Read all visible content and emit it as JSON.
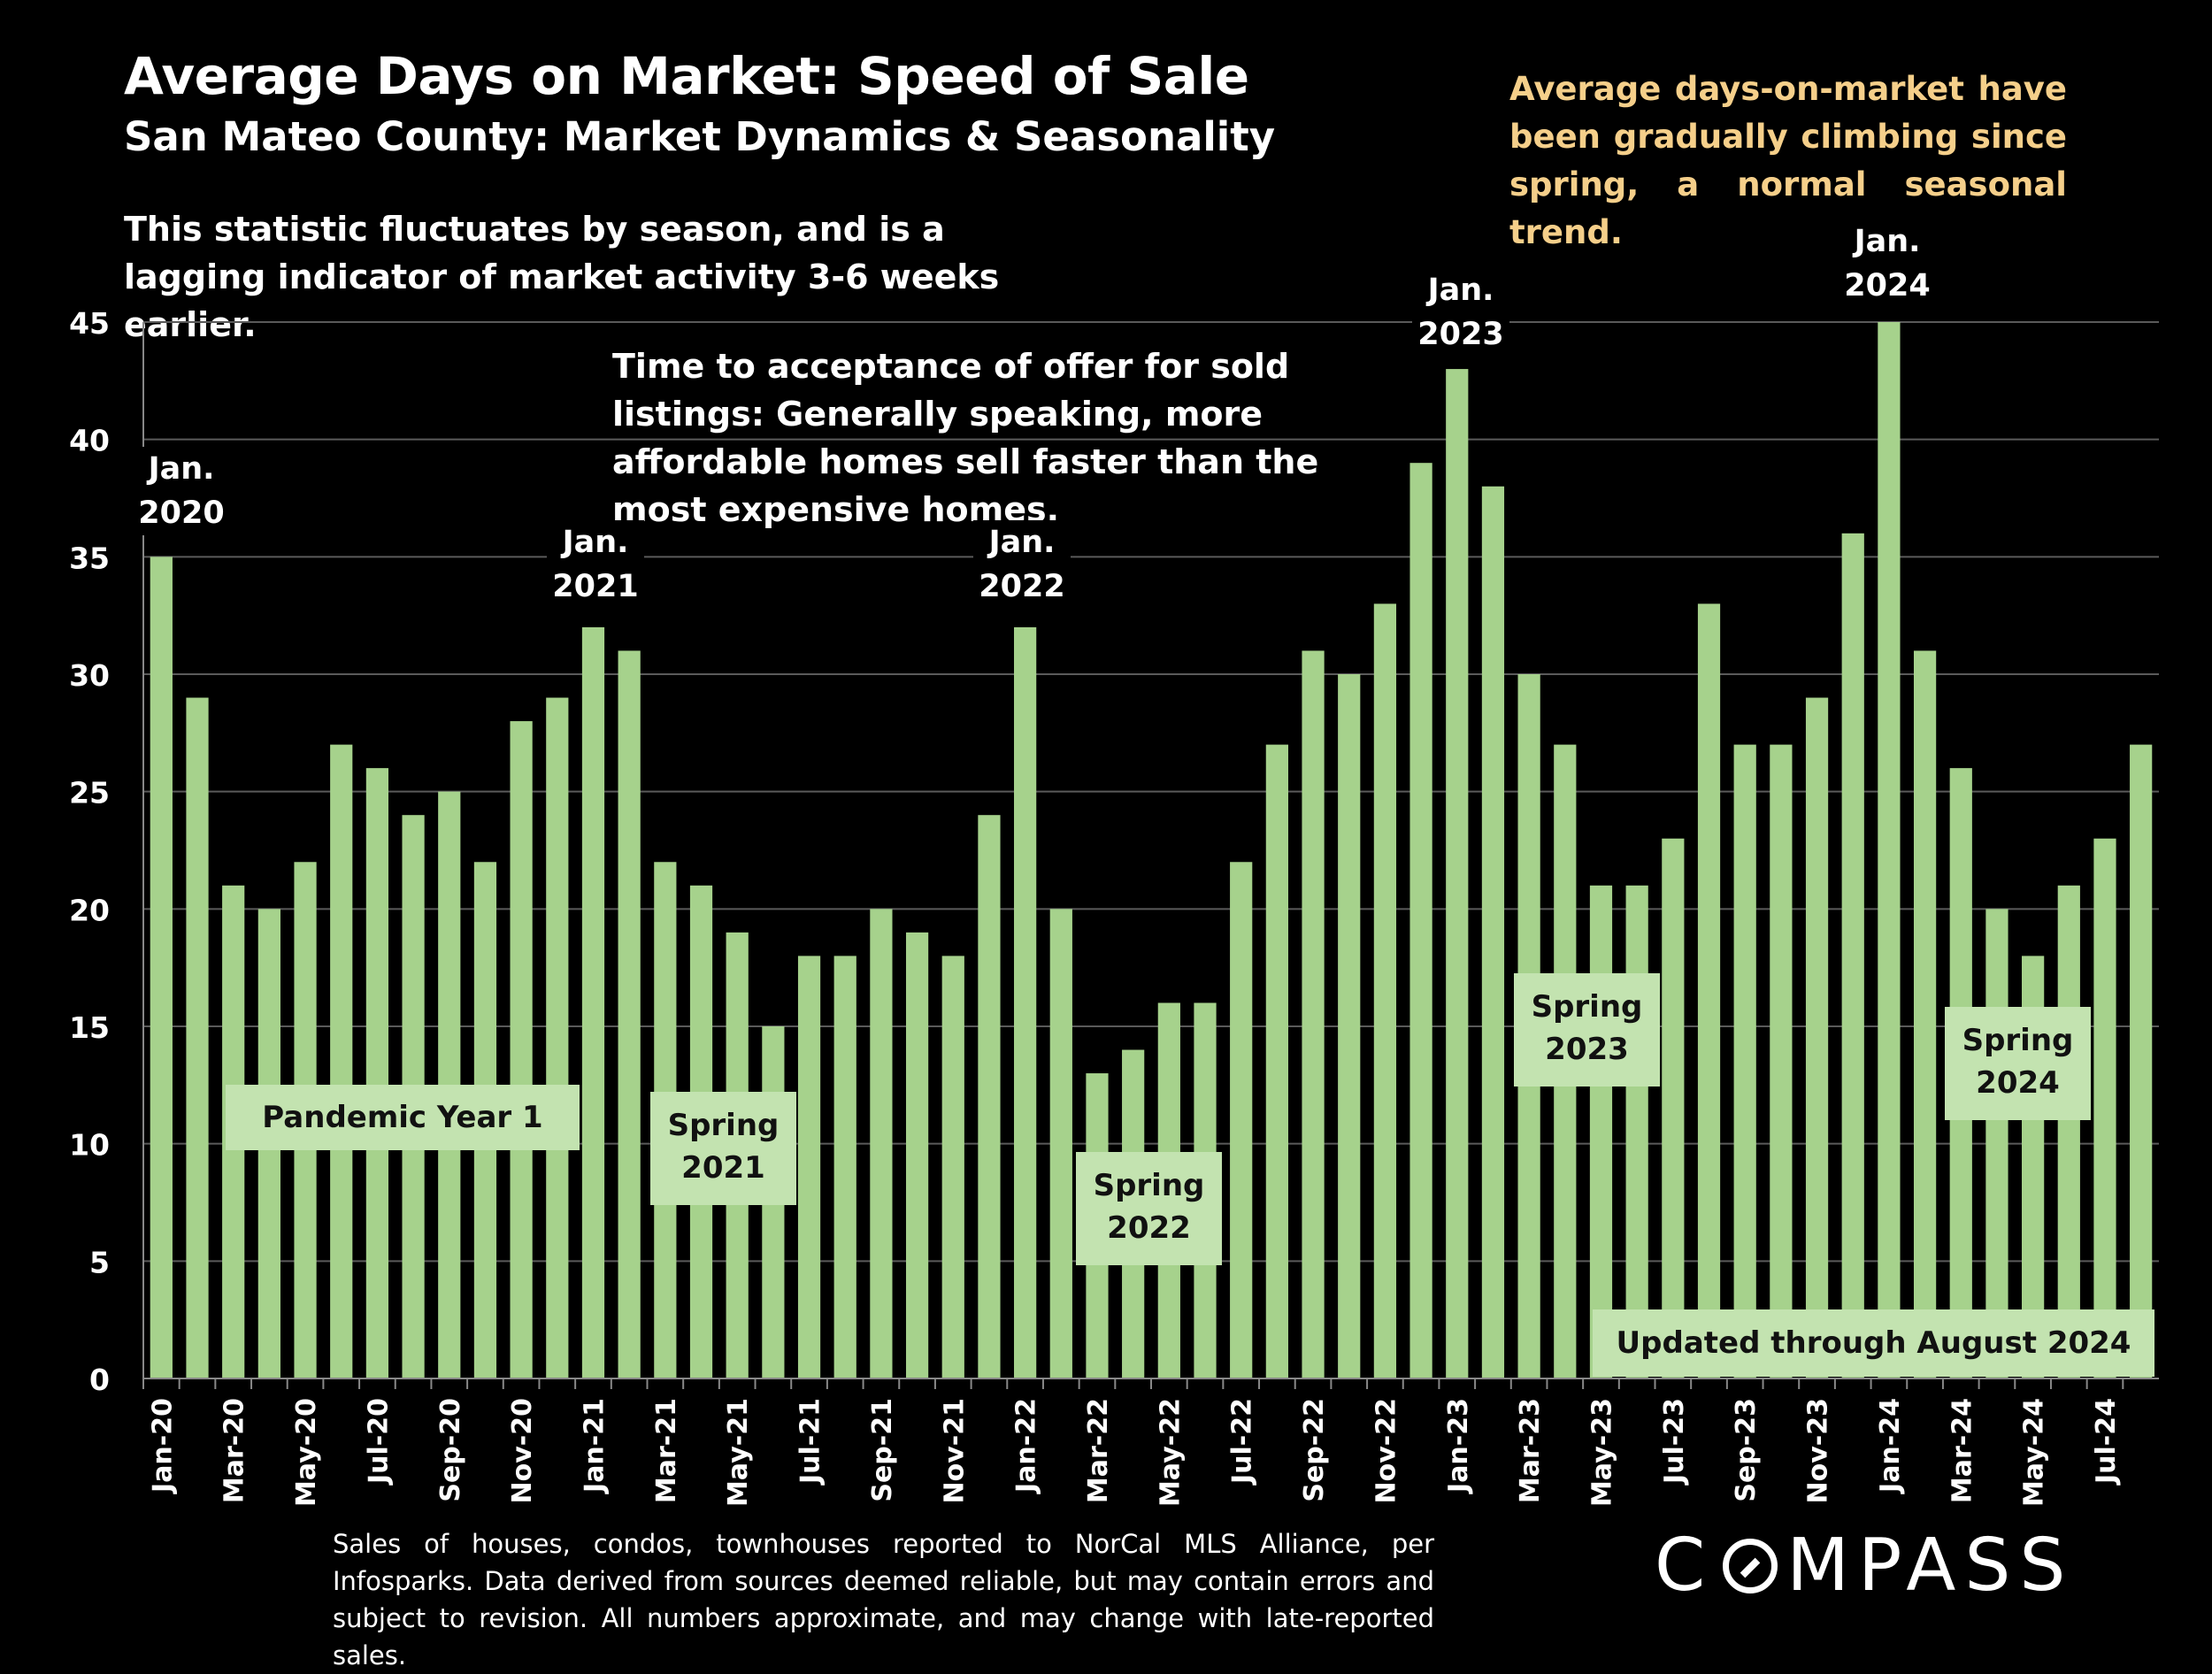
{
  "header": {
    "title": "Average Days on Market:  Speed of Sale",
    "subtitle": "San Mateo County: Market Dynamics & Seasonality",
    "note_seasonal": "This statistic fluctuates by season, and is a lagging indicator of market activity 3-6 weeks earlier.",
    "note_offer": "Time to acceptance of offer for sold listings: Generally speaking, more affordable homes sell faster than the most expensive homes.",
    "callout": "Average days-on-market have been gradually climbing since spring, a normal seasonal trend."
  },
  "annotations": {
    "pandemic": "Pandemic Year 1",
    "spring_2021": "Spring 2021",
    "spring_2022": "Spring 2022",
    "spring_2023": "Spring 2023",
    "spring_2024": "Spring 2024",
    "updated": "Updated through August 2024",
    "jan_2020": "Jan. 2020",
    "jan_2021": "Jan. 2021",
    "jan_2022": "Jan. 2022",
    "jan_2023": "Jan. 2023",
    "jan_2024": "Jan. 2024"
  },
  "footer": {
    "source": "Sales of houses, condos, townhouses reported to NorCal MLS Alliance, per Infosparks. Data derived from sources deemed reliable, but may contain errors and subject to revision. All numbers approximate, and may change with late-reported sales."
  },
  "brand": {
    "logo_text": "COMPASS"
  },
  "colors": {
    "bar": "#a6d28c",
    "label_box": "#c3e3b0",
    "callout": "#f5cf8a",
    "background": "#000000"
  },
  "chart_data": {
    "type": "bar",
    "title": "Average Days on Market:  Speed of Sale",
    "xlabel": "",
    "ylabel": "",
    "ylim": [
      0,
      45
    ],
    "yticks": [
      0,
      5,
      10,
      15,
      20,
      25,
      30,
      35,
      40,
      45
    ],
    "grid": true,
    "categories": [
      "Jan-20",
      "Feb-20",
      "Mar-20",
      "Apr-20",
      "May-20",
      "Jun-20",
      "Jul-20",
      "Aug-20",
      "Sep-20",
      "Oct-20",
      "Nov-20",
      "Dec-20",
      "Jan-21",
      "Feb-21",
      "Mar-21",
      "Apr-21",
      "May-21",
      "Jun-21",
      "Jul-21",
      "Aug-21",
      "Sep-21",
      "Oct-21",
      "Nov-21",
      "Dec-21",
      "Jan-22",
      "Feb-22",
      "Mar-22",
      "Apr-22",
      "May-22",
      "Jun-22",
      "Jul-22",
      "Aug-22",
      "Sep-22",
      "Oct-22",
      "Nov-22",
      "Dec-22",
      "Jan-23",
      "Feb-23",
      "Mar-23",
      "Apr-23",
      "May-23",
      "Jun-23",
      "Jul-23",
      "Aug-23",
      "Sep-23",
      "Oct-23",
      "Nov-23",
      "Dec-23",
      "Jan-24",
      "Feb-24",
      "Mar-24",
      "Apr-24",
      "May-24",
      "Jun-24",
      "Jul-24",
      "Aug-24"
    ],
    "tick_labels": [
      "Jan-20",
      "Mar-20",
      "May-20",
      "Jul-20",
      "Sep-20",
      "Nov-20",
      "Jan-21",
      "Mar-21",
      "May-21",
      "Jul-21",
      "Sep-21",
      "Nov-21",
      "Jan-22",
      "Mar-22",
      "May-22",
      "Jul-22",
      "Sep-22",
      "Nov-22",
      "Jan-23",
      "Mar-23",
      "May-23",
      "Jul-23",
      "Sep-23",
      "Nov-23",
      "Jan-24",
      "Mar-24",
      "May-24",
      "Jul-24"
    ],
    "values": [
      35,
      29,
      21,
      20,
      22,
      27,
      26,
      24,
      25,
      22,
      28,
      29,
      32,
      31,
      22,
      21,
      19,
      15,
      18,
      18,
      20,
      19,
      18,
      24,
      32,
      20,
      13,
      14,
      16,
      16,
      22,
      27,
      31,
      30,
      33,
      39,
      43,
      38,
      30,
      27,
      21,
      21,
      23,
      33,
      27,
      27,
      29,
      36,
      45,
      31,
      26,
      20,
      18,
      21,
      23,
      27
    ]
  }
}
